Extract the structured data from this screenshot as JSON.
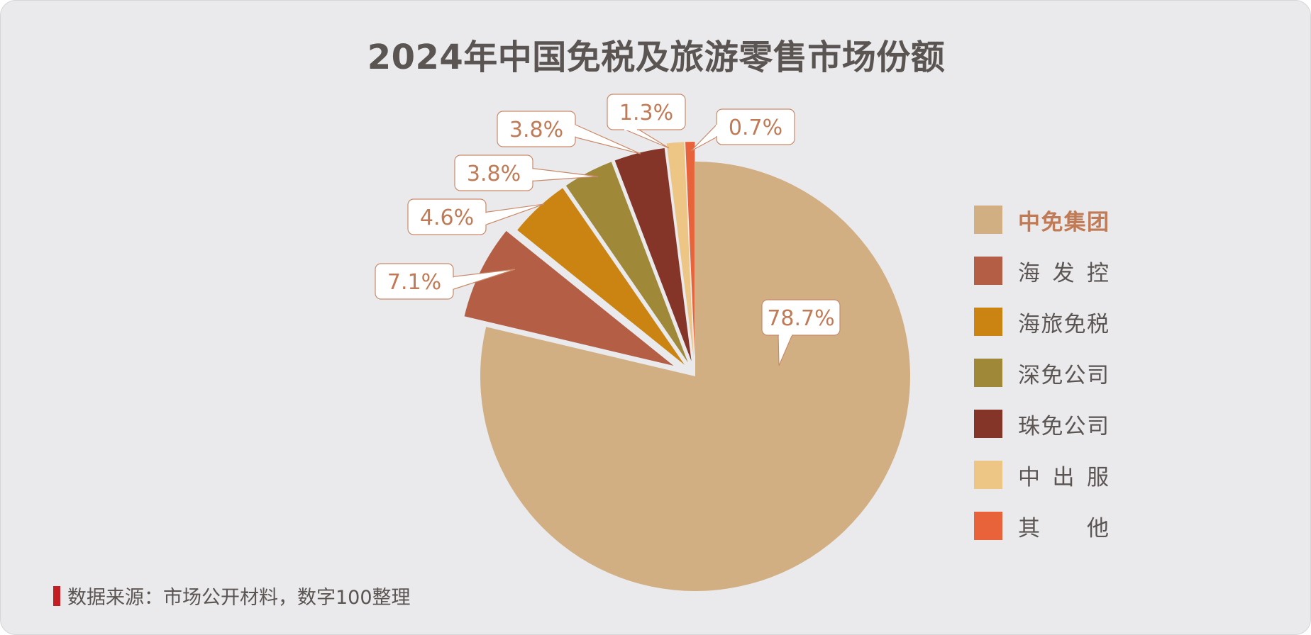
{
  "title": "2024年中国免税及旅游零售市场份额",
  "source": "数据来源：市场公开材料，数字100整理",
  "chart_data": {
    "type": "pie",
    "title": "2024年中国免税及旅游零售市场份额",
    "series": [
      {
        "name": "中免集团",
        "value": 78.7,
        "label": "78.7%",
        "color": "#d2af83"
      },
      {
        "name": "海 发 控",
        "value": 7.1,
        "label": "7.1%",
        "color": "#b45e45"
      },
      {
        "name": "海旅免税",
        "value": 4.6,
        "label": "4.6%",
        "color": "#cb8412"
      },
      {
        "name": "深免公司",
        "value": 3.8,
        "label": "3.8%",
        "color": "#9f8838"
      },
      {
        "name": "珠免公司",
        "value": 3.8,
        "label": "3.8%",
        "color": "#853428"
      },
      {
        "name": "中 出 服",
        "value": 1.3,
        "label": "1.3%",
        "color": "#edc584"
      },
      {
        "name": "其 他",
        "value": 0.7,
        "label": "0.7%",
        "color": "#e8633a"
      }
    ],
    "legend_position": "right",
    "highlighted": "中免集团",
    "label_color": "#c07a55"
  }
}
